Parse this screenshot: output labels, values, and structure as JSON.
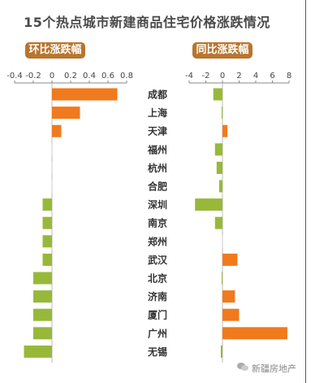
{
  "title": "15个热点城市新建商品住宅价格涨跌情况",
  "watermark": "新疆房地产",
  "colors": {
    "positive": "#f07a1c",
    "negative": "#98b83a",
    "badge": "#b8752e"
  },
  "chart_data": [
    {
      "type": "bar",
      "orientation": "horizontal",
      "title": "环比涨跌幅",
      "xlim": [
        -0.4,
        0.8
      ],
      "xticks": [
        "-0.4",
        "-0.2",
        "0",
        "0.2",
        "0.4",
        "0.6",
        "0.8"
      ],
      "categories": [
        "成都",
        "上海",
        "天津",
        "福州",
        "杭州",
        "合肥",
        "深圳",
        "南京",
        "郑州",
        "武汉",
        "北京",
        "济南",
        "厦门",
        "广州",
        "无锡"
      ],
      "values": [
        0.7,
        0.3,
        0.1,
        0,
        0,
        0,
        -0.1,
        -0.1,
        -0.1,
        -0.1,
        -0.2,
        -0.2,
        -0.2,
        -0.2,
        -0.3
      ]
    },
    {
      "type": "bar",
      "orientation": "horizontal",
      "title": "同比涨跌幅",
      "xlim": [
        -4,
        8
      ],
      "xticks": [
        "-4",
        "-2",
        "0",
        "2",
        "4",
        "6",
        "8"
      ],
      "categories": [
        "成都",
        "上海",
        "天津",
        "福州",
        "杭州",
        "合肥",
        "深圳",
        "南京",
        "郑州",
        "武汉",
        "北京",
        "济南",
        "厦门",
        "广州",
        "无锡"
      ],
      "values": [
        -1.1,
        -0.1,
        0.6,
        -0.9,
        -0.7,
        -0.4,
        -3.3,
        -0.9,
        0,
        1.8,
        -0.1,
        1.5,
        2.0,
        7.8,
        -0.2
      ]
    }
  ]
}
